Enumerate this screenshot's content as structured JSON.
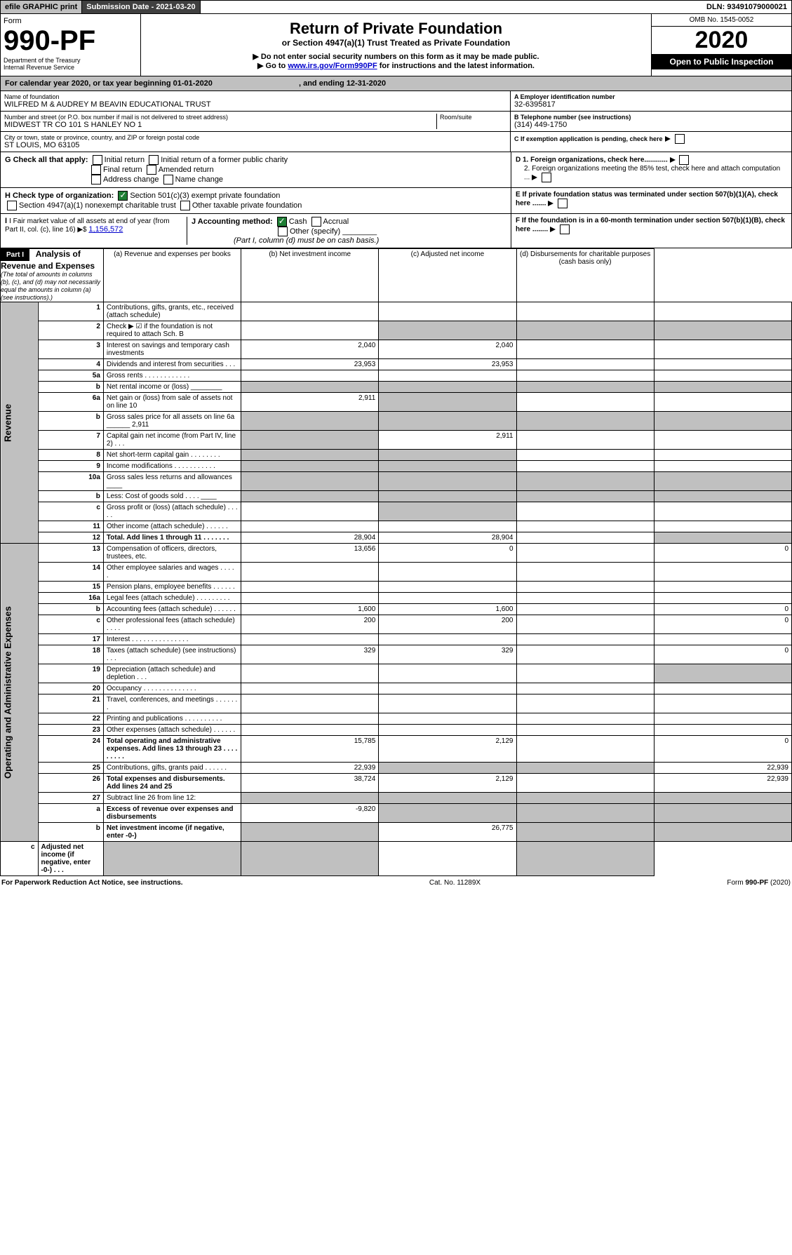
{
  "hdr": {
    "efile": "efile GRAPHIC print",
    "sub": "Submission Date - 2021-03-20",
    "dln": "DLN: 93491079000021"
  },
  "form": {
    "num": "990-PF",
    "form": "Form",
    "dept": "Department of the Treasury",
    "irs": "Internal Revenue Service",
    "title": "Return of Private Foundation",
    "sub": "or Section 4947(a)(1) Trust Treated as Private Foundation",
    "note1": "▶ Do not enter social security numbers on this form as it may be made public.",
    "note2": "▶ Go to ",
    "link": "www.irs.gov/Form990PF",
    "note3": " for instructions and the latest information.",
    "omb": "OMB No. 1545-0052",
    "year": "2020",
    "open": "Open to Public Inspection"
  },
  "cal": {
    "txt": "For calendar year 2020, or tax year beginning 01-01-2020",
    "end": ", and ending 12-31-2020"
  },
  "ident": {
    "name_lbl": "Name of foundation",
    "name": "WILFRED M & AUDREY M BEAVIN EDUCATIONAL TRUST",
    "addr_lbl": "Number and street (or P.O. box number if mail is not delivered to street address)",
    "addr": "MIDWEST TR CO 101 S HANLEY NO 1",
    "room": "Room/suite",
    "city_lbl": "City or town, state or province, country, and ZIP or foreign postal code",
    "city": "ST LOUIS, MO  63105",
    "a": "A Employer identification number",
    "ein": "32-6395817",
    "b": "B Telephone number (see instructions)",
    "tel": "(314) 449-1750",
    "c": "C If exemption application is pending, check here"
  },
  "g": {
    "lbl": "G Check all that apply:",
    "o1": "Initial return",
    "o2": "Final return",
    "o3": "Address change",
    "o4": "Initial return of a former public charity",
    "o5": "Amended return",
    "o6": "Name change"
  },
  "h": {
    "lbl": "H Check type of organization:",
    "o1": "Section 501(c)(3) exempt private foundation",
    "o2": "Section 4947(a)(1) nonexempt charitable trust",
    "o3": "Other taxable private foundation"
  },
  "d": {
    "d1": "D 1. Foreign organizations, check here............",
    "d2": "2. Foreign organizations meeting the 85% test, check here and attach computation ..."
  },
  "e": "E  If private foundation status was terminated under section 507(b)(1)(A), check here .......",
  "f": "F  If the foundation is in a 60-month termination under section 507(b)(1)(B), check here ........",
  "i": {
    "lbl": "I Fair market value of all assets at end of year (from Part II, col. (c), line 16) ▶$ ",
    "val": "1,156,572"
  },
  "j": {
    "lbl": "J Accounting method:",
    "o1": "Cash",
    "o2": "Accrual",
    "o3": "Other (specify)",
    "note": "(Part I, column (d) must be on cash basis.)"
  },
  "p1": {
    "hdr": "Part I",
    "title": "Analysis of Revenue and Expenses",
    "note": "(The total of amounts in columns (b), (c), and (d) may not necessarily equal the amounts in column (a) (see instructions).)",
    "ca": "(a)   Revenue and expenses per books",
    "cb": "(b)  Net investment income",
    "cc": "(c)  Adjusted net income",
    "cd": "(d)  Disbursements for charitable purposes (cash basis only)"
  },
  "rev_lbl": "Revenue",
  "oae_lbl": "Operating and Administrative Expenses",
  "rows": [
    {
      "n": "1",
      "d": "Contributions, gifts, grants, etc., received (attach schedule)",
      "a": "",
      "b": "",
      "c": "",
      "dd": ""
    },
    {
      "n": "2",
      "d": "Check ▶ ☑ if the foundation is not required to attach Sch. B",
      "a": "",
      "b": "",
      "c": "",
      "dd": "",
      "shade_bcd": true
    },
    {
      "n": "3",
      "d": "Interest on savings and temporary cash investments",
      "a": "2,040",
      "b": "2,040",
      "c": "",
      "dd": ""
    },
    {
      "n": "4",
      "d": "Dividends and interest from securities   .   .   .",
      "a": "23,953",
      "b": "23,953",
      "c": "",
      "dd": ""
    },
    {
      "n": "5a",
      "d": "Gross rents    .  .  .  .  .  .  .  .  .  .  .  .",
      "a": "",
      "b": "",
      "c": "",
      "dd": ""
    },
    {
      "n": "b",
      "d": "Net rental income or (loss)  ________",
      "a": "",
      "b": "",
      "c": "",
      "dd": "",
      "shade_all": true
    },
    {
      "n": "6a",
      "d": "Net gain or (loss) from sale of assets not on line 10",
      "a": "2,911",
      "b": "",
      "c": "",
      "dd": "",
      "shade_b": true
    },
    {
      "n": "b",
      "d": "Gross sales price for all assets on line 6a ______ 2,911",
      "a": "",
      "b": "",
      "c": "",
      "dd": "",
      "shade_all": true
    },
    {
      "n": "7",
      "d": "Capital gain net income (from Part IV, line 2)   .   .   .",
      "a": "",
      "b": "2,911",
      "c": "",
      "dd": "",
      "shade_a": true
    },
    {
      "n": "8",
      "d": "Net short-term capital gain   .   .   .   .   .   .   .   .",
      "a": "",
      "b": "",
      "c": "",
      "dd": "",
      "shade_ab": true
    },
    {
      "n": "9",
      "d": "Income modifications  .  .  .  .  .  .  .  .  .  .  .",
      "a": "",
      "b": "",
      "c": "",
      "dd": "",
      "shade_ab": true
    },
    {
      "n": "10a",
      "d": "Gross sales less returns and allowances  ____",
      "a": "",
      "b": "",
      "c": "",
      "dd": "",
      "shade_all": true
    },
    {
      "n": "b",
      "d": "Less: Cost of goods sold    .   .   .   .  ____",
      "a": "",
      "b": "",
      "c": "",
      "dd": "",
      "shade_all": true
    },
    {
      "n": "c",
      "d": "Gross profit or (loss) (attach schedule)   .   .   .   .   .",
      "a": "",
      "b": "",
      "c": "",
      "dd": "",
      "shade_b": true
    },
    {
      "n": "11",
      "d": "Other income (attach schedule)    .   .   .   .   .   .",
      "a": "",
      "b": "",
      "c": "",
      "dd": ""
    },
    {
      "n": "12",
      "d": "Total. Add lines 1 through 11    .   .   .   .   .   .   .",
      "a": "28,904",
      "b": "28,904",
      "c": "",
      "dd": "",
      "bold": true,
      "shade_d": true
    },
    {
      "n": "13",
      "d": "Compensation of officers, directors, trustees, etc.",
      "a": "13,656",
      "b": "0",
      "c": "",
      "dd": "0"
    },
    {
      "n": "14",
      "d": "Other employee salaries and wages    .   .   .   .   .",
      "a": "",
      "b": "",
      "c": "",
      "dd": ""
    },
    {
      "n": "15",
      "d": "Pension plans, employee benefits   .   .   .   .   .   .",
      "a": "",
      "b": "",
      "c": "",
      "dd": ""
    },
    {
      "n": "16a",
      "d": "Legal fees (attach schedule)  .  .  .  .  .  .  .  .  .",
      "a": "",
      "b": "",
      "c": "",
      "dd": ""
    },
    {
      "n": "b",
      "d": "Accounting fees (attach schedule)   .   .   .   .   .   .",
      "a": "1,600",
      "b": "1,600",
      "c": "",
      "dd": "0"
    },
    {
      "n": "c",
      "d": "Other professional fees (attach schedule)    .   .   .   .",
      "a": "200",
      "b": "200",
      "c": "",
      "dd": "0"
    },
    {
      "n": "17",
      "d": "Interest   .  .  .  .  .  .  .  .  .  .  .  .  .  .  .",
      "a": "",
      "b": "",
      "c": "",
      "dd": ""
    },
    {
      "n": "18",
      "d": "Taxes (attach schedule) (see instructions)    .   .   .",
      "a": "329",
      "b": "329",
      "c": "",
      "dd": "0"
    },
    {
      "n": "19",
      "d": "Depreciation (attach schedule) and depletion   .   .   .",
      "a": "",
      "b": "",
      "c": "",
      "dd": "",
      "shade_d": true
    },
    {
      "n": "20",
      "d": "Occupancy  .  .  .  .  .  .  .  .  .  .  .  .  .  .",
      "a": "",
      "b": "",
      "c": "",
      "dd": ""
    },
    {
      "n": "21",
      "d": "Travel, conferences, and meetings  .  .  .  .  .  .  .",
      "a": "",
      "b": "",
      "c": "",
      "dd": ""
    },
    {
      "n": "22",
      "d": "Printing and publications  .  .  .  .  .  .  .  .  .  .",
      "a": "",
      "b": "",
      "c": "",
      "dd": ""
    },
    {
      "n": "23",
      "d": "Other expenses (attach schedule)   .   .   .   .   .   .",
      "a": "",
      "b": "",
      "c": "",
      "dd": ""
    },
    {
      "n": "24",
      "d": "Total operating and administrative expenses. Add lines 13 through 23   .   .   .   .   .   .   .   .   .",
      "a": "15,785",
      "b": "2,129",
      "c": "",
      "dd": "0",
      "bold": true
    },
    {
      "n": "25",
      "d": "Contributions, gifts, grants paid     .   .   .   .   .   .",
      "a": "22,939",
      "b": "",
      "c": "",
      "dd": "22,939",
      "shade_bc": true
    },
    {
      "n": "26",
      "d": "Total expenses and disbursements. Add lines 24 and 25",
      "a": "38,724",
      "b": "2,129",
      "c": "",
      "dd": "22,939",
      "bold": true
    },
    {
      "n": "27",
      "d": "Subtract line 26 from line 12:",
      "a": "",
      "b": "",
      "c": "",
      "dd": "",
      "shade_all": true
    },
    {
      "n": "a",
      "d": "Excess of revenue over expenses and disbursements",
      "a": "-9,820",
      "b": "",
      "c": "",
      "dd": "",
      "bold": true,
      "shade_bcd": true
    },
    {
      "n": "b",
      "d": "Net investment income (if negative, enter -0-)",
      "a": "",
      "b": "26,775",
      "c": "",
      "dd": "",
      "bold": true,
      "shade_a": true,
      "shade_cd": true
    },
    {
      "n": "c",
      "d": "Adjusted net income (if negative, enter -0-)   .   .   .",
      "a": "",
      "b": "",
      "c": "",
      "dd": "",
      "bold": true,
      "shade_ab": true,
      "shade_d": true
    }
  ],
  "footer": {
    "l": "For Paperwork Reduction Act Notice, see instructions.",
    "c": "Cat. No. 11289X",
    "r": "Form 990-PF (2020)"
  }
}
